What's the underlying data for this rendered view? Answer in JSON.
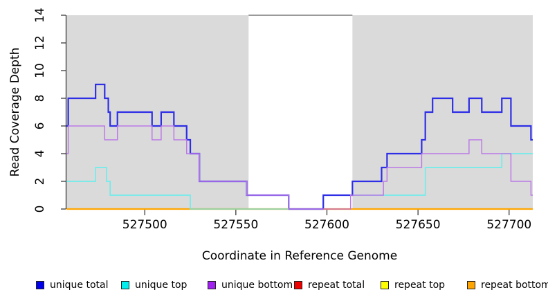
{
  "chart_data": {
    "type": "line",
    "subtype": "step-coverage",
    "title": "",
    "xlabel": "Coordinate in Reference Genome",
    "ylabel": "Read Coverage Depth",
    "xlim": [
      527457,
      527713
    ],
    "ylim": [
      0,
      14
    ],
    "x_ticks": [
      527500,
      527550,
      527600,
      527650,
      527700
    ],
    "y_ticks": [
      0,
      2,
      4,
      6,
      8,
      10,
      12,
      14
    ],
    "grid": false,
    "background": "#ffffff",
    "shaded_regions": [
      {
        "from": 527457,
        "to": 527557,
        "color": "#dadada"
      },
      {
        "from": 527614,
        "to": 527713,
        "color": "#dadada"
      }
    ],
    "gap_marker": {
      "y": 14,
      "from": 527557,
      "to": 527614,
      "color": "#787878"
    },
    "series": [
      {
        "name": "unique total",
        "color": "#2e2ee6",
        "legend_color": "#0000ee",
        "line_width": 2.2,
        "steps": [
          [
            527457,
            6
          ],
          [
            527458,
            8
          ],
          [
            527473,
            9
          ],
          [
            527478,
            8
          ],
          [
            527480,
            7
          ],
          [
            527481,
            6
          ],
          [
            527485,
            7
          ],
          [
            527504,
            6
          ],
          [
            527509,
            7
          ],
          [
            527516,
            6
          ],
          [
            527523,
            5
          ],
          [
            527525,
            4
          ],
          [
            527530,
            2
          ],
          [
            527556,
            1
          ],
          [
            527579,
            0
          ],
          [
            527598,
            1
          ],
          [
            527614,
            2
          ],
          [
            527630,
            3
          ],
          [
            527633,
            4
          ],
          [
            527652,
            5
          ],
          [
            527654,
            7
          ],
          [
            527658,
            8
          ],
          [
            527669,
            7
          ],
          [
            527678,
            8
          ],
          [
            527685,
            7
          ],
          [
            527696,
            8
          ],
          [
            527701,
            6
          ],
          [
            527712,
            5
          ]
        ],
        "end_x": 527713
      },
      {
        "name": "unique top",
        "color": "#70ecec",
        "legend_color": "#00eeee",
        "line_width": 1.7,
        "steps": [
          [
            527457,
            2
          ],
          [
            527473,
            3
          ],
          [
            527479,
            2
          ],
          [
            527481,
            1
          ],
          [
            527525,
            0
          ],
          [
            527598,
            1
          ],
          [
            527654,
            3
          ],
          [
            527696,
            4
          ]
        ],
        "end_x": 527713
      },
      {
        "name": "unique bottom",
        "color": "#bb79e6",
        "legend_color": "#a020f0",
        "line_width": 1.5,
        "steps": [
          [
            527457,
            4
          ],
          [
            527458,
            6
          ],
          [
            527478,
            5
          ],
          [
            527485,
            6
          ],
          [
            527504,
            5
          ],
          [
            527509,
            6
          ],
          [
            527516,
            5
          ],
          [
            527523,
            4
          ],
          [
            527530,
            2
          ],
          [
            527556,
            1
          ],
          [
            527579,
            0
          ],
          [
            527613,
            1
          ],
          [
            527631,
            2
          ],
          [
            527633,
            3
          ],
          [
            527652,
            4
          ],
          [
            527678,
            5
          ],
          [
            527685,
            4
          ],
          [
            527701,
            2
          ],
          [
            527712,
            1
          ]
        ],
        "end_x": 527713
      },
      {
        "name": "repeat total",
        "color": "#ee0000",
        "legend_color": "#ee0000",
        "line_width": 1.7,
        "steps": [
          [
            527457,
            0
          ]
        ],
        "end_x": 527713
      },
      {
        "name": "repeat top",
        "color": "#ffff00",
        "legend_color": "#ffff00",
        "line_width": 1.7,
        "steps": [
          [
            527457,
            0
          ]
        ],
        "end_x": 527713
      },
      {
        "name": "repeat bottom",
        "color": "#ffa500",
        "legend_color": "#ffa500",
        "line_width": 2.2,
        "steps": [
          [
            527457,
            0
          ]
        ],
        "end_x": 527713
      }
    ],
    "zero_line_overlap_segments": [
      {
        "from": 527525,
        "to": 527579,
        "color": "#9bcd9b"
      },
      {
        "from": 527598,
        "to": 527613,
        "color": "#cf7396"
      }
    ],
    "legend": {
      "position": "bottom",
      "items": [
        "unique total",
        "unique top",
        "unique bottom",
        "repeat total",
        "repeat top",
        "repeat bottom"
      ]
    }
  }
}
